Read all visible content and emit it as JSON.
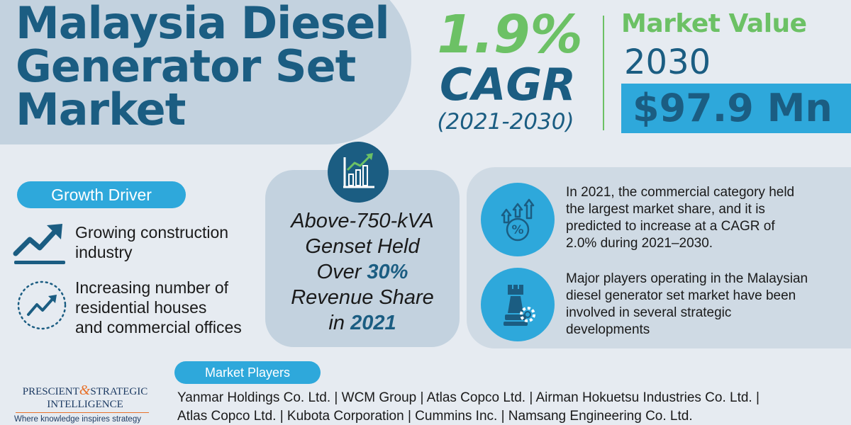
{
  "title": {
    "line1": "Malaysia Diesel",
    "line2": "Generator Set",
    "line3": "Market"
  },
  "cagr": {
    "value": "1.9%",
    "label": "CAGR",
    "period": "(2021-2030)"
  },
  "market_value": {
    "label": "Market Value",
    "year": "2030",
    "value": "$97.9 Mn"
  },
  "growth_driver": {
    "heading": "Growth Driver",
    "items": [
      {
        "text_line1": "Growing construction",
        "text_line2": "industry",
        "icon": "trend-up-arrow-icon"
      },
      {
        "text_line1": "Increasing number of",
        "text_line2": "residential houses",
        "text_line3": "and commercial offices",
        "icon": "chart-growth-circle-icon"
      }
    ]
  },
  "highlight": {
    "line1": "Above-750-kVA",
    "line2": "Genset Held",
    "line3_prefix": "Over ",
    "line3_emphasis": "30%",
    "line4": "Revenue Share",
    "line5_prefix": "in ",
    "line5_emphasis": "2021",
    "icon": "bar-chart-trend-icon"
  },
  "insights": [
    {
      "icon": "percent-growth-icon",
      "line1": "In 2021, the commercial category held",
      "line2": "the largest market share, and it is",
      "line3": "predicted to increase at a CAGR of",
      "line4": "2.0% during 2021–2030."
    },
    {
      "icon": "strategy-chess-gear-icon",
      "line1": "Major players operating in the Malaysian",
      "line2": "diesel generator set market have been",
      "line3": "involved in several strategic",
      "line4": "developments"
    }
  ],
  "market_players": {
    "heading": "Market Players",
    "line1": "Yanmar Holdings Co. Ltd. | WCM Group | Atlas Copco Ltd. | Airman Hokuetsu Industries Co. Ltd. |",
    "line2": "Atlas Copco Ltd. | Kubota Corporation | Cummins Inc. | Namsang Engineering Co. Ltd."
  },
  "logo": {
    "word1": "PRESCIENT",
    "amp": "&",
    "word2": "STRATEGIC",
    "word3": "INTELLIGENCE",
    "tagline": "Where knowledge inspires strategy"
  },
  "colors": {
    "navy": "#1b5d82",
    "green": "#6cc165",
    "blue": "#2ea8db",
    "panel": "#c3d2df",
    "background": "#e6ebf1",
    "orange": "#e7712a"
  }
}
